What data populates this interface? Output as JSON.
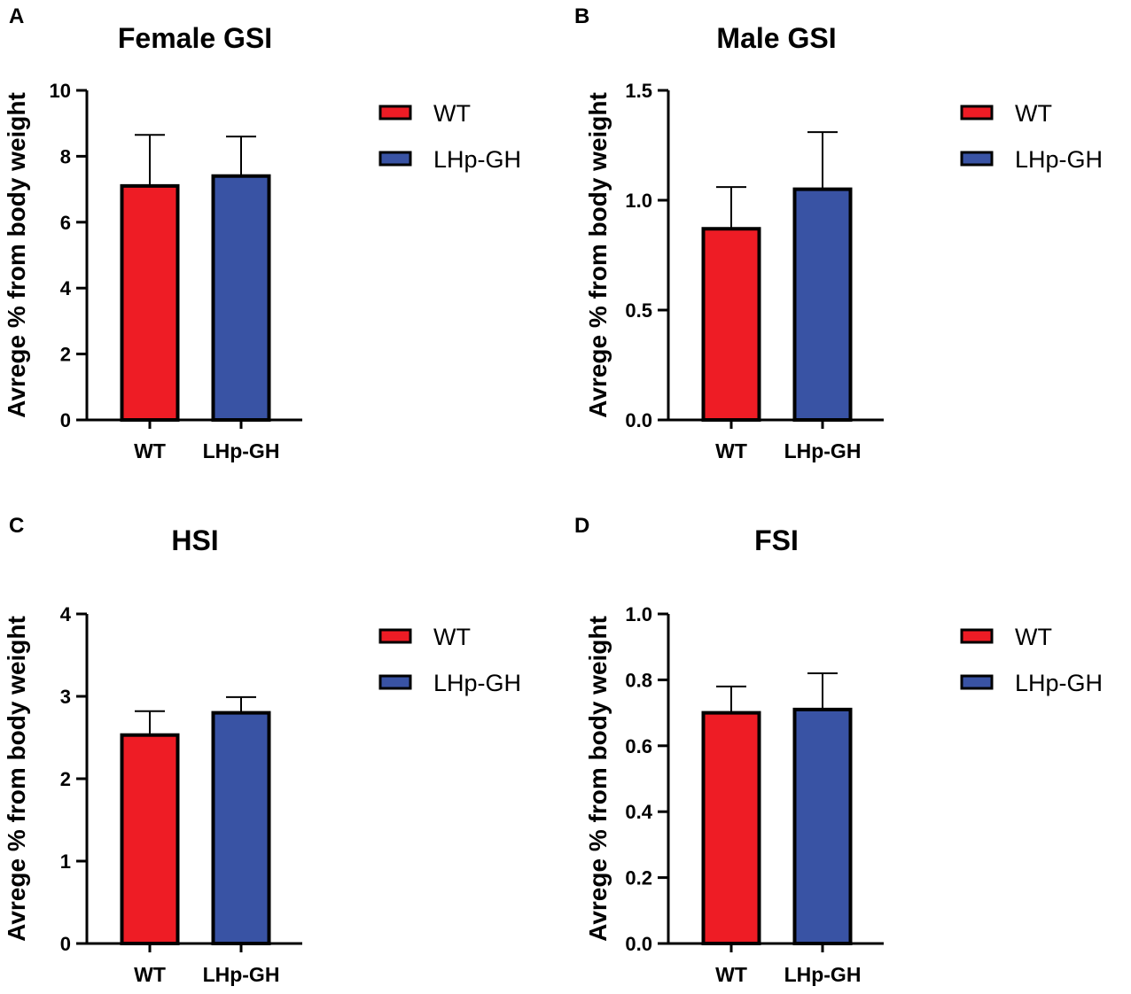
{
  "colors": {
    "wt": "#ee1c25",
    "lhp": "#3953a4",
    "axis": "#000000"
  },
  "legend": [
    {
      "label": "WT",
      "color": "#ee1c25"
    },
    {
      "label": "LHp-GH",
      "color": "#3953a4"
    }
  ],
  "chart_data": [
    {
      "letter": "A",
      "type": "bar",
      "title": "Female GSI",
      "ylabel": "Avrege % from body weight",
      "categories": [
        "WT",
        "LHp-GH"
      ],
      "values": [
        7.1,
        7.4
      ],
      "errors": [
        1.55,
        1.2
      ],
      "ylim": [
        0,
        10
      ],
      "yticks": [
        0,
        2,
        4,
        6,
        8,
        10
      ],
      "ytick_labels": [
        "0",
        "2",
        "4",
        "6",
        "8",
        "10"
      ]
    },
    {
      "letter": "B",
      "type": "bar",
      "title": "Male GSI",
      "ylabel": "Avrege % from body weight",
      "categories": [
        "WT",
        "LHp-GH"
      ],
      "values": [
        0.87,
        1.05
      ],
      "errors": [
        0.19,
        0.26
      ],
      "ylim": [
        0,
        1.5
      ],
      "yticks": [
        0,
        0.5,
        1.0,
        1.5
      ],
      "ytick_labels": [
        "0.0",
        "0.5",
        "1.0",
        "1.5"
      ]
    },
    {
      "letter": "C",
      "type": "bar",
      "title": "HSI",
      "ylabel": "Avrege % from body weight",
      "categories": [
        "WT",
        "LHp-GH"
      ],
      "values": [
        2.53,
        2.8
      ],
      "errors": [
        0.29,
        0.19
      ],
      "ylim": [
        0,
        4
      ],
      "yticks": [
        0,
        1,
        2,
        3,
        4
      ],
      "ytick_labels": [
        "0",
        "1",
        "2",
        "3",
        "4"
      ]
    },
    {
      "letter": "D",
      "type": "bar",
      "title": "FSI",
      "ylabel": "Avrege % from body weight",
      "categories": [
        "WT",
        "LHp-GH"
      ],
      "values": [
        0.7,
        0.71
      ],
      "errors": [
        0.08,
        0.11
      ],
      "ylim": [
        0,
        1.0
      ],
      "yticks": [
        0,
        0.2,
        0.4,
        0.6,
        0.8,
        1.0
      ],
      "ytick_labels": [
        "0.0",
        "0.2",
        "0.4",
        "0.6",
        "0.8",
        "1.0"
      ]
    }
  ]
}
